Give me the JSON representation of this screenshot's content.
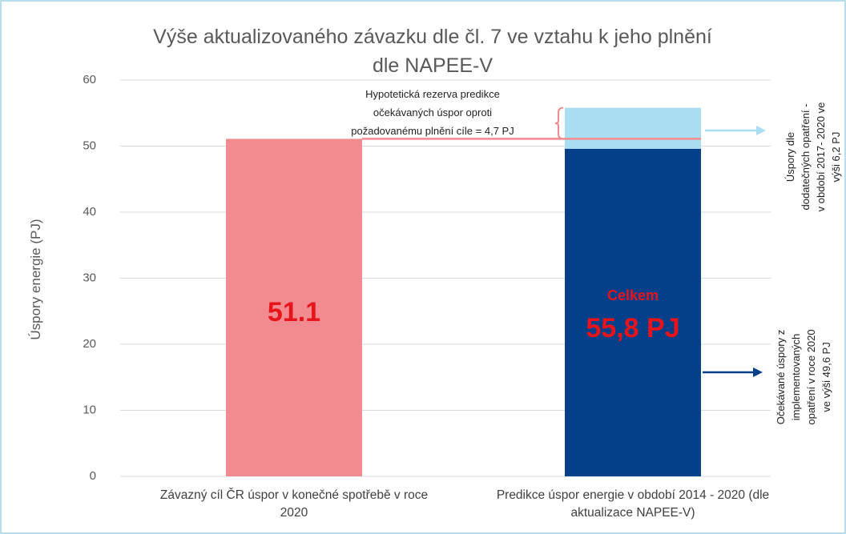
{
  "chart_data": {
    "type": "bar",
    "title": "Výše aktualizovaného závazku dle čl. 7 ve vztahu k jeho plnění\ndle NAPEE-V",
    "y_label": "Úspory energie (PJ)",
    "categories": [
      "Závazný cíl ČR úspor v konečné spotřebě v roce\n2020",
      "Predikce úspor energie v období 2014 - 2020 (dle\naktualizace NAPEE-V)"
    ],
    "series": [
      {
        "color": "#f28b8f",
        "values": [
          51.1,
          null
        ]
      },
      {
        "color": "#034089",
        "values": [
          null,
          49.6
        ]
      },
      {
        "color": "#a9def2",
        "values": [
          null,
          6.2
        ]
      }
    ],
    "stacked": true,
    "ylim": [
      0,
      60
    ],
    "yticks": [
      0,
      10,
      20,
      30,
      40,
      50,
      60
    ],
    "grid": true,
    "annotations": [
      "Hypotetická rezerva predikce\nočekávaných úspor oproti\npožadovanému plnění cíle = 4,7 PJ",
      "Celkem",
      "55,8 PJ",
      "Úspory dle\ndodatečných opatření -\nv období 2017- 2020 ve\nvýši 6,2 PJ",
      "Očekávané úspory z\nimplementovaných\nopatření v roce 2020\nve výši 49,6 PJ"
    ]
  }
}
